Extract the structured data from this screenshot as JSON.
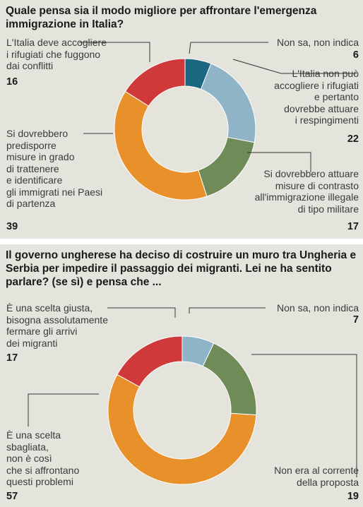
{
  "colors": {
    "dark_teal": "#1b6680",
    "light_blue": "#8fb4c8",
    "green": "#6f8b57",
    "orange": "#e8912a",
    "red": "#d0393a",
    "background": "#e4e4dc"
  },
  "chart_data": [
    {
      "type": "pie",
      "title": "Quale pensa sia il modo migliore per affrontare l'emergenza immigrazione in Italia?",
      "slices": [
        {
          "label": "Non sa, non indica",
          "value": 6,
          "color": "#1b6680"
        },
        {
          "label": "L'Italia non può accogliere i rifugiati e pertanto dovrebbe attuare i respingimenti",
          "value": 22,
          "color": "#8fb4c8"
        },
        {
          "label": "Si dovrebbero attuare misure di contrasto all'immigrazione illegale di tipo militare",
          "value": 17,
          "color": "#6f8b57"
        },
        {
          "label": "Si dovrebbero predisporre misure in grado di trattenere e identificare gli immigrati nei Paesi di partenza",
          "value": 39,
          "color": "#e8912a"
        },
        {
          "label": "L'Italia deve accogliere i rifugiati che fuggono dai conflitti",
          "value": 16,
          "color": "#d0393a"
        }
      ]
    },
    {
      "type": "pie",
      "title": "Il governo ungherese ha deciso di costruire un muro tra Ungheria e Serbia per impedire il passaggio dei migranti. Lei ne ha sentito parlare? (se sì) e pensa che ...",
      "slices": [
        {
          "label": "Non sa, non indica",
          "value": 7,
          "color": "#8fb4c8"
        },
        {
          "label": "Non era al corrente della proposta",
          "value": 19,
          "color": "#6f8b57"
        },
        {
          "label": "È una scelta sbagliata, non è così che si affrontano questi problemi",
          "value": 57,
          "color": "#e8912a"
        },
        {
          "label": "È una scelta giusta, bisogna assolutamente fermare gli arrivi dei migranti",
          "value": 17,
          "color": "#d0393a"
        }
      ]
    }
  ],
  "panel1": {
    "title": "Quale pensa sia il modo migliore per affrontare l'emergenza immigrazione in Italia?",
    "labels": {
      "s0_text": "Non sa, non indica",
      "s0_val": "6",
      "s1_text": "L'Italia non può\naccogliere i rifugiati\ne pertanto\ndovrebbe attuare\ni respingimenti",
      "s1_val": "22",
      "s2_text": "Si dovrebbero attuare\nmisure di contrasto\nall'immigrazione illegale\ndi tipo militare",
      "s2_val": "17",
      "s3_text": "Si dovrebbero\npredisporre\nmisure in grado\ndi trattenere\ne identificare\ngli immigrati nei Paesi\ndi partenza",
      "s3_val": "39",
      "s4_text": "L'Italia deve accogliere\ni rifugiati che fuggono\ndai conflitti",
      "s4_val": "16"
    }
  },
  "panel2": {
    "title": "Il governo ungherese ha deciso di costruire un muro tra Ungheria e Serbia per impedire il passaggio dei migranti. Lei ne ha sentito parlare? (se sì) e pensa che ...",
    "labels": {
      "s0_text": "Non sa, non indica",
      "s0_val": "7",
      "s1_text": "Non era al corrente\ndella proposta",
      "s1_val": "19",
      "s2_text": "È una scelta\nsbagliata,\nnon è così\nche si affrontano\nquesti problemi",
      "s2_val": "57",
      "s3_text": "È una scelta giusta,\nbisogna assolutamente\nfermare gli arrivi\ndei migranti",
      "s3_val": "17"
    }
  }
}
